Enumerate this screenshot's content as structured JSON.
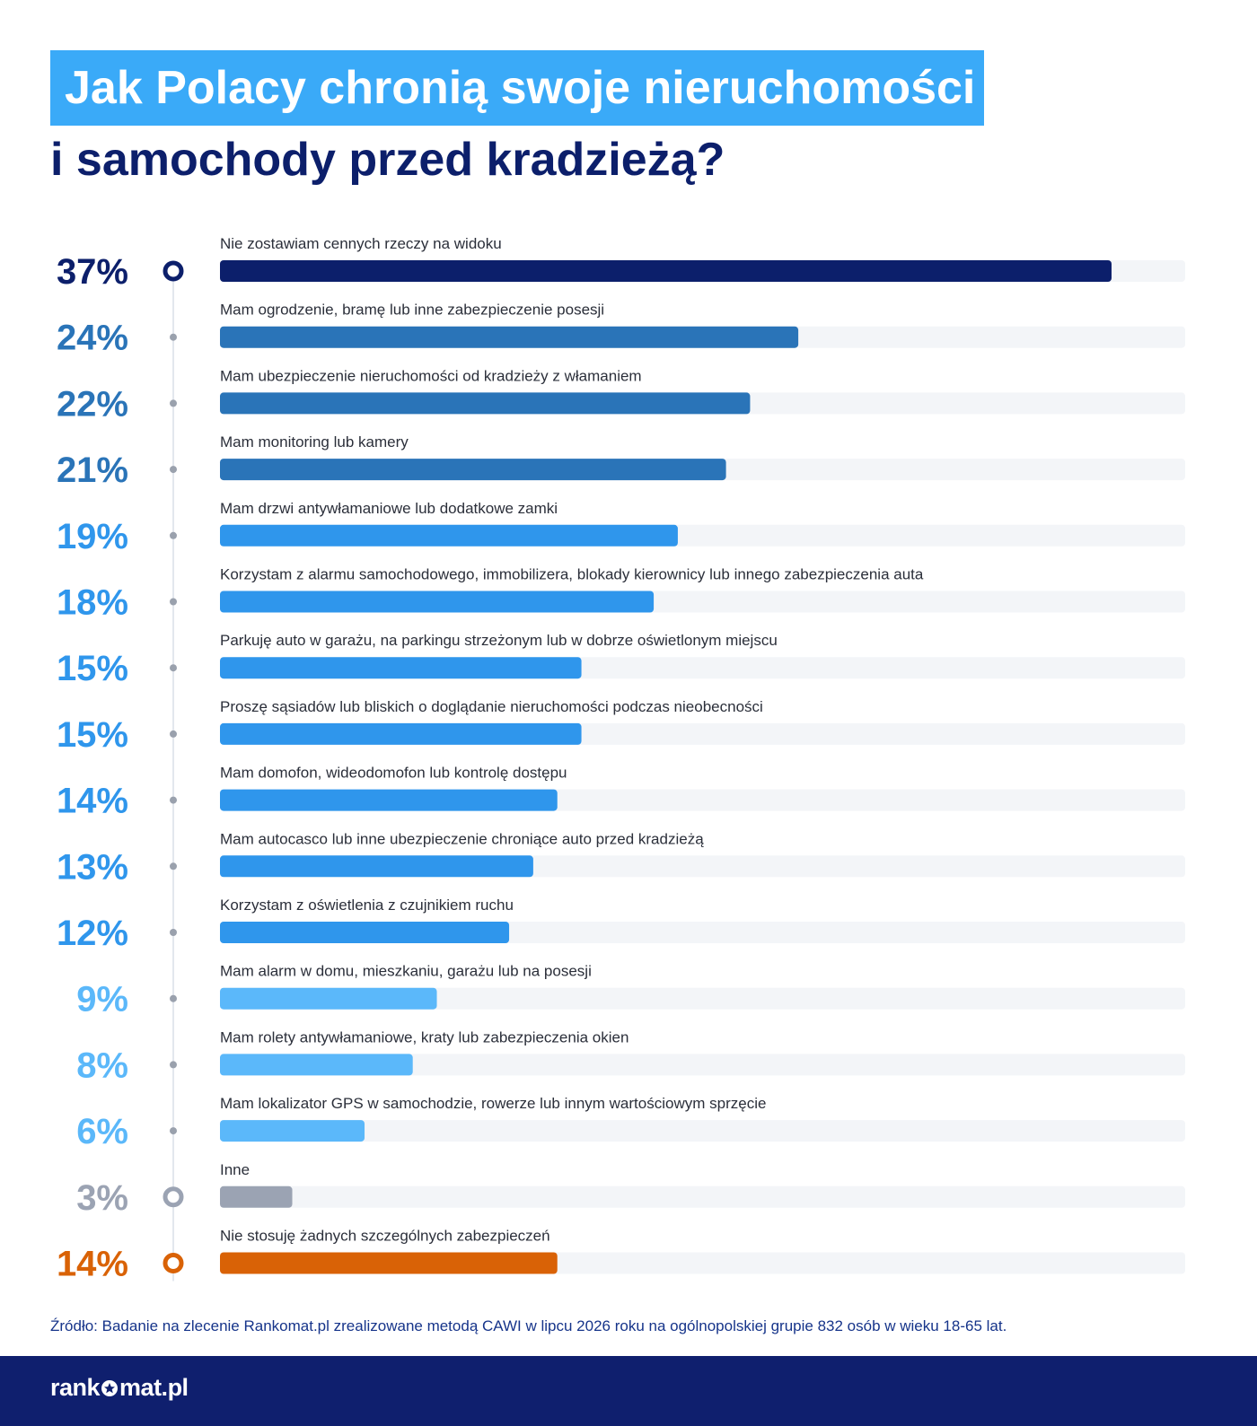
{
  "title_line1": "Jak Polacy chronią swoje nieruchomości",
  "title_line2": "i samochody przed kradzieżą?",
  "chart_data": {
    "type": "bar",
    "orientation": "horizontal",
    "title": "Jak Polacy chronią swoje nieruchomości i samochody przed kradzieżą?",
    "categories": [
      "Nie zostawiam cennych rzeczy na widoku",
      "Mam ogrodzenie, bramę lub inne zabezpieczenie posesji",
      "Mam ubezpieczenie nieruchomości od kradzieży z włamaniem",
      "Mam monitoring lub kamery",
      "Mam drzwi antywłamaniowe lub dodatkowe zamki",
      "Korzystam z alarmu samochodowego, immobilizera, blokady kierownicy lub innego zabezpieczenia auta",
      "Parkuję auto w garażu, na parkingu strzeżonym lub w dobrze oświetlonym miejscu",
      "Proszę sąsiadów lub bliskich o doglądanie nieruchomości podczas nieobecności",
      "Mam domofon, wideodomofon lub kontrolę dostępu",
      "Mam autocasco lub inne ubezpieczenie chroniące auto przed kradzieżą",
      "Korzystam z oświetlenia z czujnikiem ruchu",
      "Mam alarm w domu, mieszkaniu, garażu lub na posesji",
      "Mam rolety antywłamaniowe, kraty lub zabezpieczenia okien",
      "Mam lokalizator GPS w samochodzie, rowerze lub innym wartościowym sprzęcie",
      "Inne",
      "Nie stosuję żadnych szczególnych zabezpieczeń"
    ],
    "values": [
      37,
      24,
      22,
      21,
      19,
      18,
      15,
      15,
      14,
      13,
      12,
      9,
      8,
      6,
      3,
      14
    ],
    "value_labels": [
      "37%",
      "24%",
      "22%",
      "21%",
      "19%",
      "18%",
      "15%",
      "15%",
      "14%",
      "13%",
      "12%",
      "9%",
      "8%",
      "6%",
      "3%",
      "14%"
    ],
    "colors": [
      "#0c1f6b",
      "#2a74b8",
      "#2a74b8",
      "#2a74b8",
      "#2f96ec",
      "#2f96ec",
      "#2f96ec",
      "#2f96ec",
      "#2f96ec",
      "#2f96ec",
      "#2f96ec",
      "#5bb8fa",
      "#5bb8fa",
      "#5bb8fa",
      "#9ba3b3",
      "#d96206"
    ],
    "label_colors": [
      "#0c1f6b",
      "#2a74b8",
      "#2a74b8",
      "#2a74b8",
      "#2f96ec",
      "#2f96ec",
      "#2f96ec",
      "#2f96ec",
      "#2f96ec",
      "#2f96ec",
      "#2f96ec",
      "#5bb8fa",
      "#5bb8fa",
      "#5bb8fa",
      "#9ba3b3",
      "#d96206"
    ],
    "marker_styles": [
      "ring",
      "dot",
      "dot",
      "dot",
      "dot",
      "dot",
      "dot",
      "dot",
      "dot",
      "dot",
      "dot",
      "dot",
      "dot",
      "dot",
      "ring",
      "ring"
    ],
    "xlim": [
      0,
      40
    ],
    "track_color": "#f3f5f8",
    "grid": false
  },
  "source_note": "Źródło: Badanie na zlecenie Rankomat.pl zrealizowane metodą CAWI w lipcu 2026 roku na ogólnopolskiej grupie 832 osób w wieku 18-65 lat.",
  "logo": {
    "left": "rank",
    "right": "mat.pl"
  }
}
